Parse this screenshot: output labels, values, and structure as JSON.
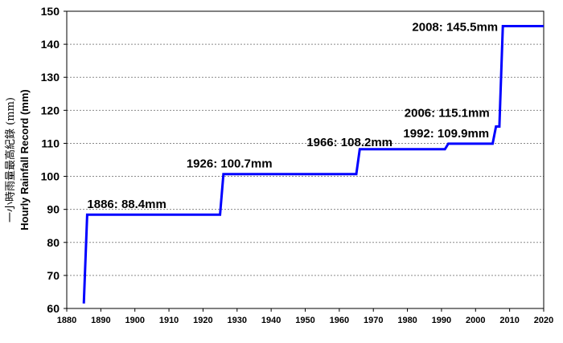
{
  "chart_data": {
    "type": "line",
    "ylabel_zh": "一小時雨量最高紀錄 (mm)",
    "ylabel_en": "Hourly Rainfall Record (mm)",
    "xlim": [
      1880,
      2020
    ],
    "ylim": [
      60,
      150
    ],
    "x_ticks": [
      1880,
      1890,
      1900,
      1910,
      1920,
      1930,
      1940,
      1950,
      1960,
      1970,
      1980,
      1990,
      2000,
      2010,
      2020
    ],
    "y_ticks": [
      60,
      70,
      80,
      90,
      100,
      110,
      120,
      130,
      140,
      150
    ],
    "grid": "horizontal dotted",
    "line_color": "#0000ff",
    "series": [
      {
        "points": [
          [
            1885,
            61.5
          ],
          [
            1886,
            88.4
          ],
          [
            1925,
            88.4
          ],
          [
            1926,
            100.7
          ],
          [
            1965,
            100.7
          ],
          [
            1966,
            108.2
          ],
          [
            1991,
            108.2
          ],
          [
            1992,
            109.9
          ],
          [
            2005,
            109.9
          ],
          [
            2006,
            115.1
          ],
          [
            2007,
            115.1
          ],
          [
            2008,
            145.5
          ],
          [
            2020,
            145.5
          ]
        ]
      }
    ],
    "annotations": [
      {
        "text": "1886: 88.4mm",
        "x": 1886,
        "y": 88.4
      },
      {
        "text": "1926: 100.7mm",
        "x": 1926,
        "y": 100.7
      },
      {
        "text": "1966: 108.2mm",
        "x": 1966,
        "y": 108.2
      },
      {
        "text": "1992: 109.9mm",
        "x": 1992,
        "y": 109.9
      },
      {
        "text": "2006: 115.1mm",
        "x": 2006,
        "y": 115.1
      },
      {
        "text": "2008: 145.5mm",
        "x": 2008,
        "y": 145.5
      }
    ]
  }
}
